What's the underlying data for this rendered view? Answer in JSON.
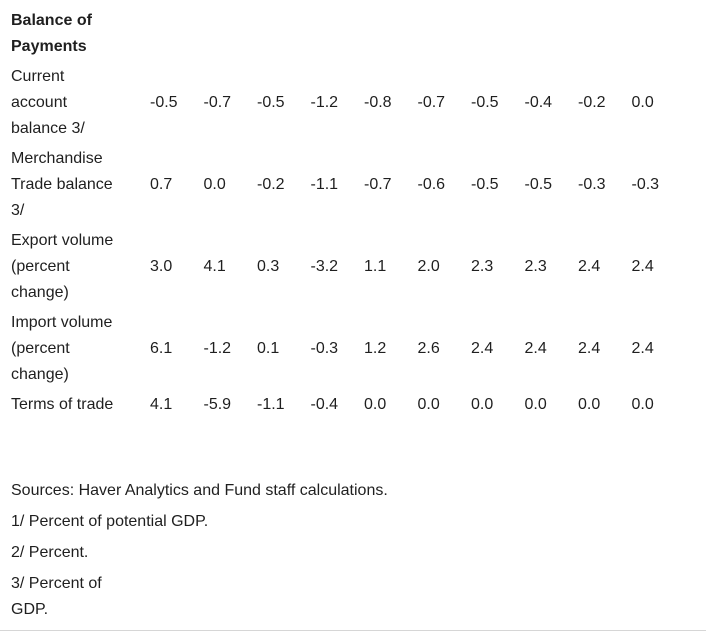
{
  "header": {
    "title": "Balance of\nPayments"
  },
  "table": {
    "rows": [
      {
        "label": "Current\naccount\nbalance 3/",
        "values": [
          "-0.5",
          "-0.7",
          "-0.5",
          "-1.2",
          "-0.8",
          "-0.7",
          "-0.5",
          "-0.4",
          "-0.2",
          "0.0"
        ]
      },
      {
        "label": "Merchandise\nTrade balance\n3/",
        "values": [
          "0.7",
          "0.0",
          "-0.2",
          "-1.1",
          "-0.7",
          "-0.6",
          "-0.5",
          "-0.5",
          "-0.3",
          "-0.3"
        ]
      },
      {
        "label": "Export volume\n(percent\nchange)",
        "values": [
          "3.0",
          "4.1",
          "0.3",
          "-3.2",
          "1.1",
          "2.0",
          "2.3",
          "2.3",
          "2.4",
          "2.4"
        ]
      },
      {
        "label": "Import volume\n(percent\nchange)",
        "values": [
          "6.1",
          "-1.2",
          "0.1",
          "-0.3",
          "1.2",
          "2.6",
          "2.4",
          "2.4",
          "2.4",
          "2.4"
        ]
      },
      {
        "label": "Terms of trade",
        "values": [
          "4.1",
          "-5.9",
          "-1.1",
          "-0.4",
          "0.0",
          "0.0",
          "0.0",
          "0.0",
          "0.0",
          "0.0"
        ]
      }
    ]
  },
  "footnotes": [
    "Sources: Haver Analytics and Fund staff calculations.",
    "1/ Percent of potential GDP.",
    "2/ Percent.",
    "3/ Percent of\nGDP."
  ],
  "colors": {
    "text": "#1f1f1f",
    "bottom_rule": "#d6d6d6",
    "background": "#ffffff"
  }
}
